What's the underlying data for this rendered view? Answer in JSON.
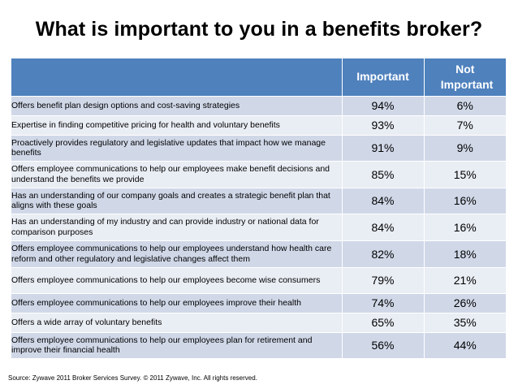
{
  "title": "What is important to you in a benefits broker?",
  "table": {
    "headers": [
      "",
      "Important",
      "Not Important"
    ],
    "rows": [
      {
        "statement": "Offers benefit plan design options and cost-saving strategies",
        "important": "94%",
        "not_important": "6%"
      },
      {
        "statement": "Expertise in finding competitive pricing for health and voluntary benefits",
        "important": "93%",
        "not_important": "7%"
      },
      {
        "statement": "Proactively provides regulatory and legislative updates that impact how we manage benefits",
        "important": "91%",
        "not_important": "9%"
      },
      {
        "statement": "Offers employee communications to help our employees make benefit decisions and understand the benefits we provide",
        "important": "85%",
        "not_important": "15%"
      },
      {
        "statement": "Has an understanding of our company goals and creates a strategic benefit plan that aligns with these goals",
        "important": "84%",
        "not_important": "16%"
      },
      {
        "statement": "Has an understanding of my industry and can provide industry or national data for comparison purposes",
        "important": "84%",
        "not_important": "16%"
      },
      {
        "statement": "Offers employee communications to help our employees understand how health care reform and other regulatory and legislative changes affect them",
        "important": "82%",
        "not_important": "18%"
      },
      {
        "statement": "Offers employee communications to help our employees become wise consumers",
        "important": "79%",
        "not_important": "21%"
      },
      {
        "statement": "Offers employee communications to help our employees improve their health",
        "important": "74%",
        "not_important": "26%"
      },
      {
        "statement": "Offers a wide array of voluntary benefits",
        "important": "65%",
        "not_important": "35%"
      },
      {
        "statement": "Offers employee communications to help our employees plan for retirement and improve their financial health",
        "important": "56%",
        "not_important": "44%"
      }
    ]
  },
  "source": "Source: Zywave 2011 Broker Services Survey. © 2011 Zywave, Inc. All rights reserved.",
  "colors": {
    "header_bg": "#4f81bd",
    "row_dark": "#d0d8e8",
    "row_light": "#e9edf4"
  }
}
